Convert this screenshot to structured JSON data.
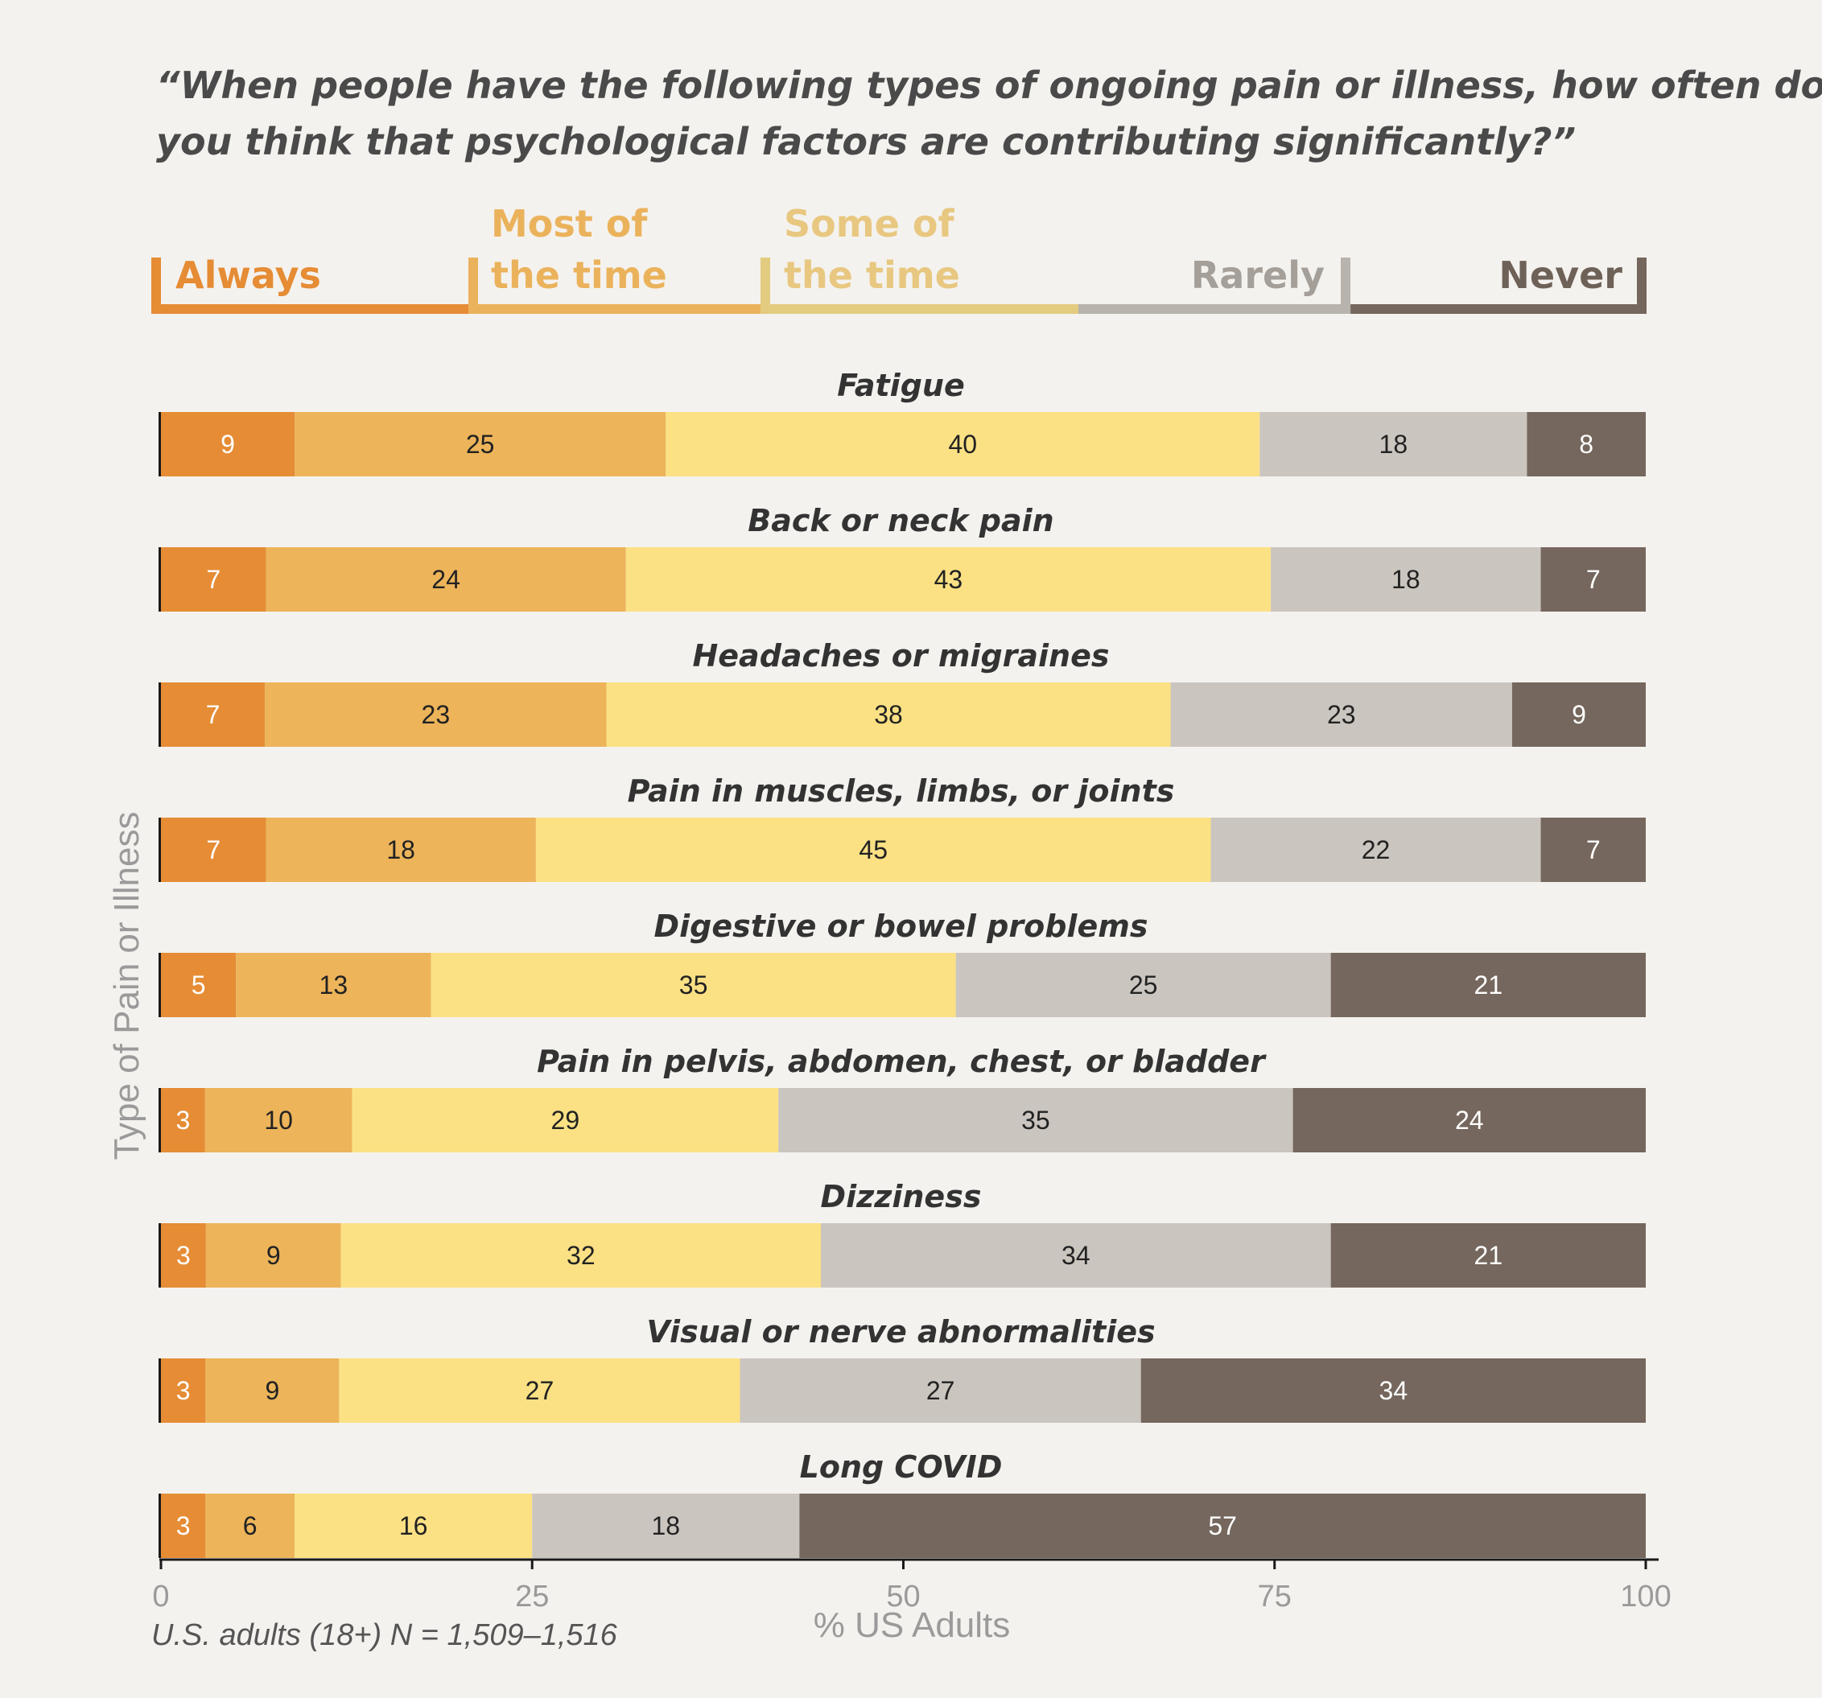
{
  "chart_data": {
    "type": "bar",
    "orientation": "horizontal",
    "stacked": true,
    "title_lines": [
      "“When people have the following types of ongoing pain or illness, how often do",
      "you think that psychological factors are contributing significantly?”"
    ],
    "categories": [
      "Fatigue",
      "Back or neck pain",
      "Headaches or migraines",
      "Pain in muscles, limbs, or joints",
      "Digestive or bowel problems",
      "Pain in pelvis, abdomen, chest, or bladder",
      "Dizziness",
      "Visual or nerve abnormalities",
      "Long COVID"
    ],
    "series": [
      {
        "name": "Always",
        "legend_lines": [
          "Always"
        ],
        "color": "#e58c35",
        "label_color": "#ffffff",
        "values": [
          9,
          7,
          7,
          7,
          5,
          3,
          3,
          3,
          3
        ]
      },
      {
        "name": "Most of the time",
        "legend_lines": [
          "Most of",
          "the time"
        ],
        "color": "#edb45a",
        "legend_color": "#ebb25c",
        "label_color": "#222222",
        "values": [
          25,
          24,
          23,
          18,
          13,
          10,
          9,
          9,
          6
        ]
      },
      {
        "name": "Some of the time",
        "legend_lines": [
          "Some of",
          "the time"
        ],
        "color": "#fbe184",
        "legend_color": "#e3cc80",
        "legend_text_color": "#e8c780",
        "label_color": "#222222",
        "values": [
          40,
          43,
          38,
          45,
          35,
          29,
          32,
          27,
          16
        ]
      },
      {
        "name": "Rarely",
        "legend_lines": [
          "Rarely"
        ],
        "color": "#cbc5bf",
        "legend_color": "#b8b3ad",
        "legend_text_color": "#a59f99",
        "label_color": "#222222",
        "values": [
          18,
          18,
          23,
          22,
          25,
          35,
          34,
          27,
          18
        ]
      },
      {
        "name": "Never",
        "legend_lines": [
          "Never"
        ],
        "color": "#75675d",
        "legend_text_color": "#6e6157",
        "label_color": "#ffffff",
        "values": [
          8,
          7,
          9,
          7,
          21,
          24,
          21,
          34,
          57
        ]
      }
    ],
    "xlabel": "% US Adults",
    "ylabel": "Type of Pain or Illness",
    "xlim": [
      0,
      100
    ],
    "xticks": [
      "0",
      "25",
      "50",
      "75",
      "100"
    ],
    "note": "U.S. adults (18+) N = 1,509–1,516",
    "legend_position": "top",
    "grid": false
  }
}
